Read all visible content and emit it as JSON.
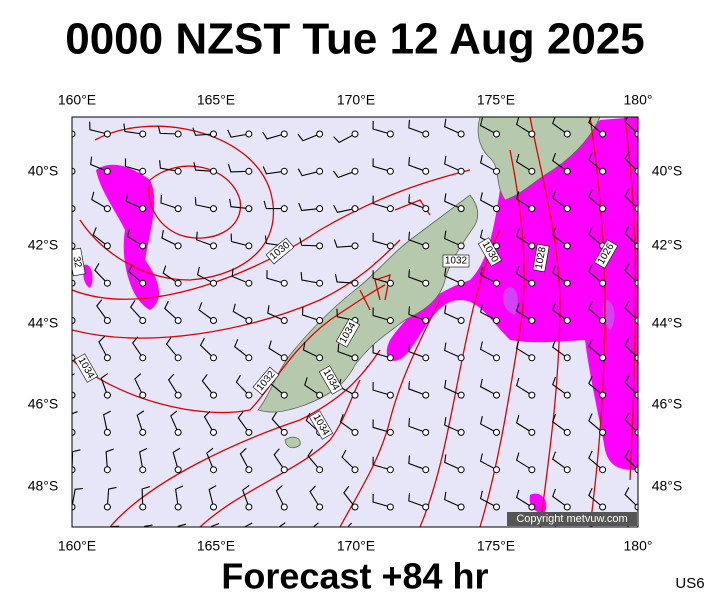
{
  "title": "0000 NZST Tue 12 Aug 2025",
  "x_axis_labels": [
    "160°E",
    "165°E",
    "170°E",
    "175°E",
    "180°"
  ],
  "y_axis_labels": [
    "40°S",
    "42°S",
    "44°S",
    "46°S",
    "48°S"
  ],
  "isobar_labels": [
    "1030",
    "32",
    "1034",
    "1034",
    "1032",
    "1030",
    "1028",
    "1026",
    "1032",
    "1034",
    "1034"
  ],
  "copyright": "Copyright metvuw.com",
  "footer": "Forecast +84 hr",
  "code": "US6"
}
